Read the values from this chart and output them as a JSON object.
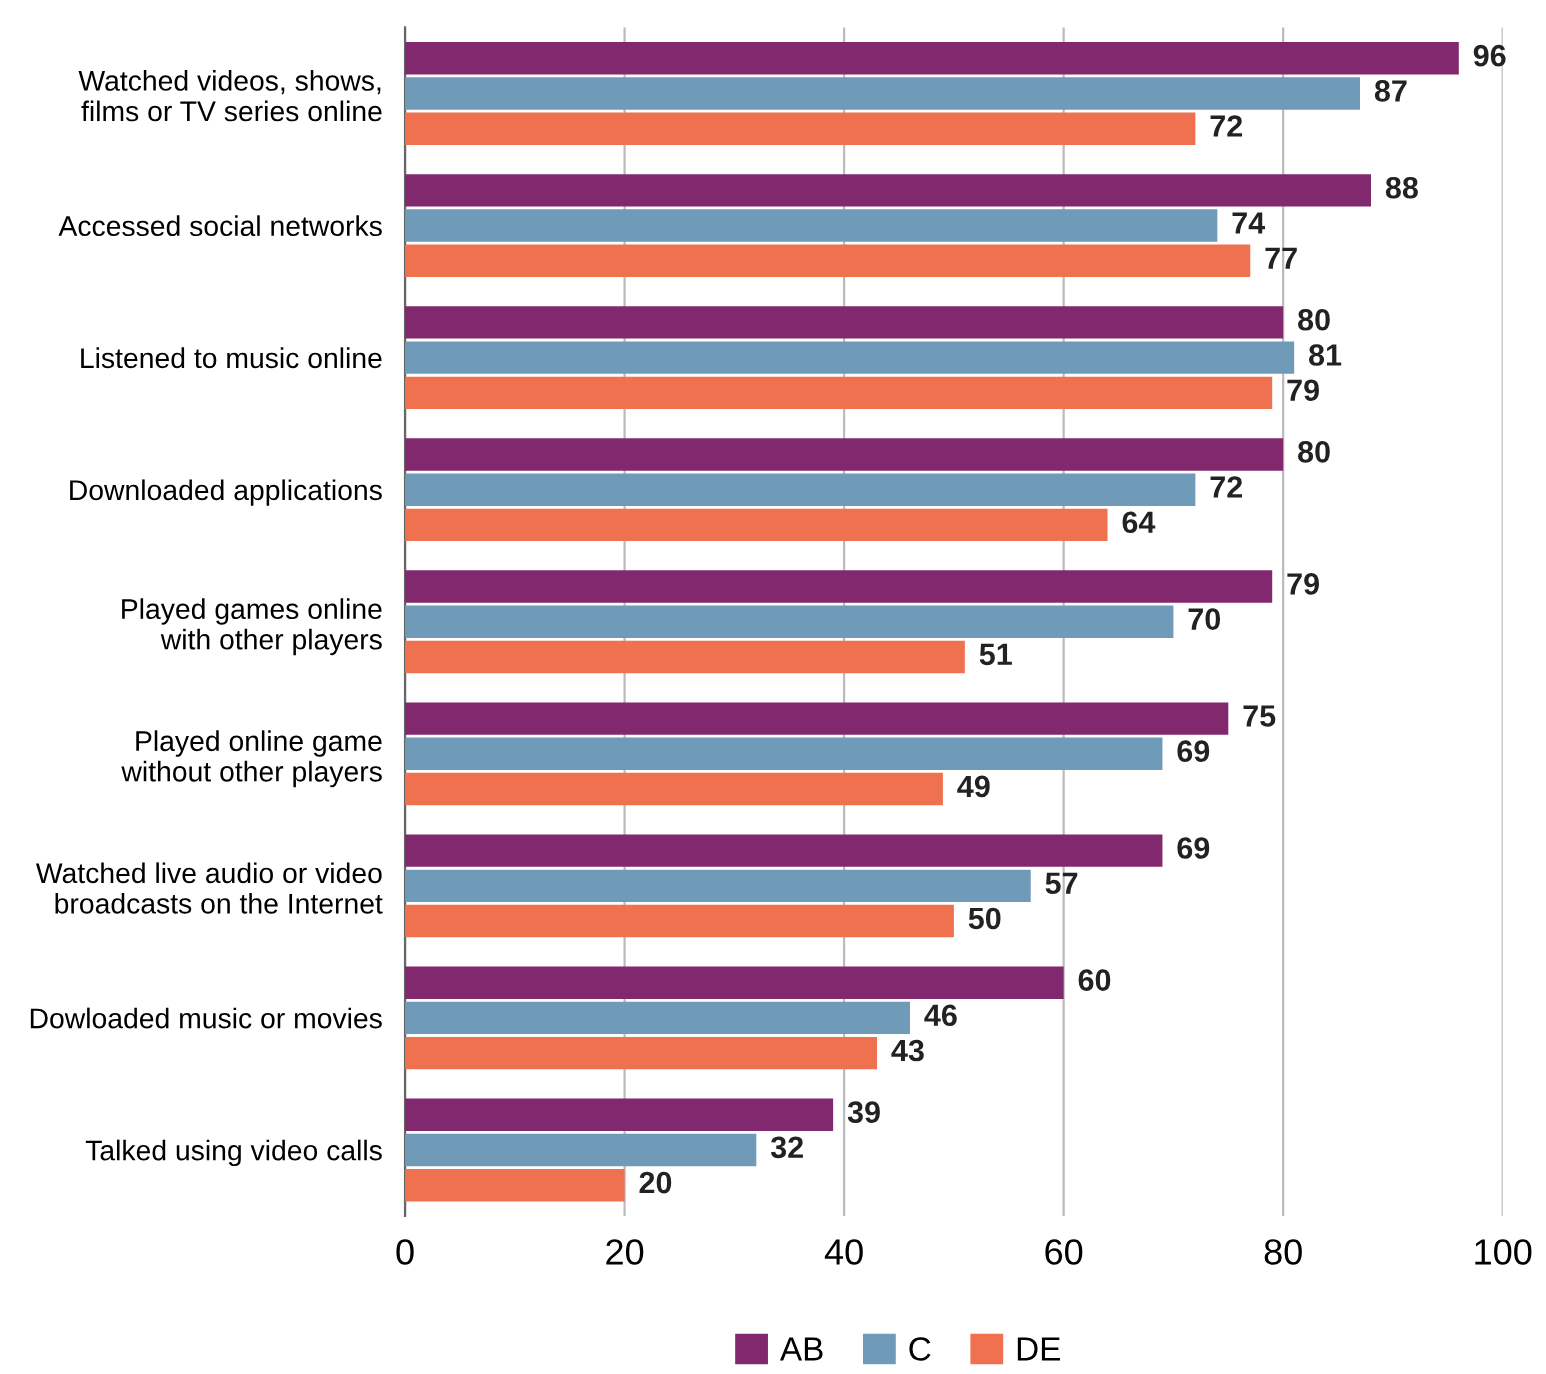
{
  "chart_data": {
    "type": "bar",
    "orientation": "horizontal",
    "categories": [
      "Watched videos, shows,\nfilms or TV series online",
      "Accessed social networks",
      "Listened to music online",
      "Downloaded applications",
      "Played games online\nwith other players",
      "Played online game\nwithout other players",
      "Watched live audio or video\nbroadcasts on the Internet",
      "Dowloaded music or movies",
      "Talked using video calls"
    ],
    "series": [
      {
        "name": "AB",
        "color": "#82286e",
        "values": [
          96,
          88,
          80,
          80,
          79,
          75,
          69,
          60,
          39
        ]
      },
      {
        "name": "C",
        "color": "#6f9ab8",
        "values": [
          87,
          74,
          81,
          72,
          70,
          69,
          57,
          46,
          32
        ]
      },
      {
        "name": "DE",
        "color": "#f07150",
        "values": [
          72,
          77,
          79,
          64,
          51,
          49,
          50,
          43,
          20
        ]
      }
    ],
    "xlim": [
      0,
      100
    ],
    "xticks": [
      0,
      20,
      40,
      60,
      80,
      100
    ],
    "grid": "x",
    "legend": "bottom",
    "data_labels": true
  }
}
